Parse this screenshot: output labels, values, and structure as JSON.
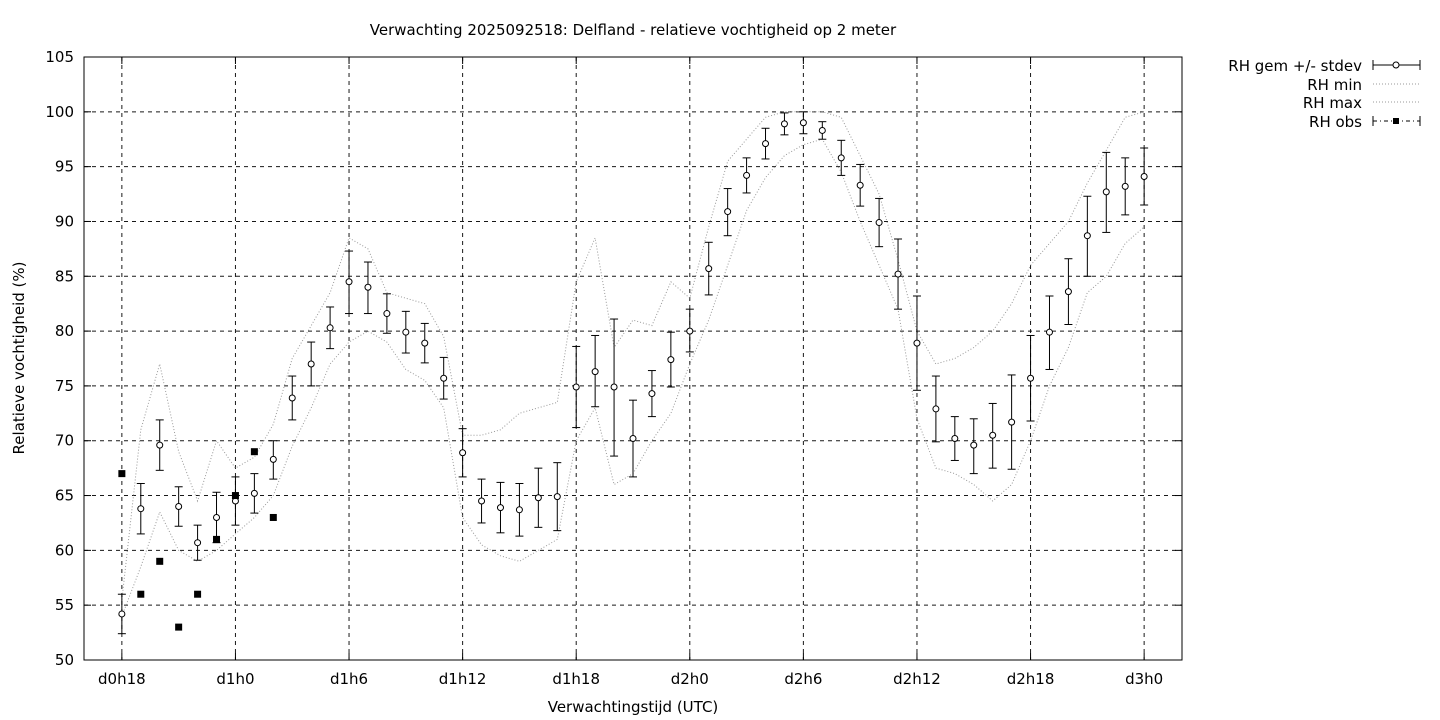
{
  "chart_data": {
    "type": "line",
    "title": "Verwachting 2025092518: Delfland - relatieve vochtigheid op 2 meter",
    "xlabel": "Verwachtingstijd (UTC)",
    "ylabel": "Relatieve vochtigheid (%)",
    "ylim": [
      50,
      105
    ],
    "yticks": [
      50,
      55,
      60,
      65,
      70,
      75,
      80,
      85,
      90,
      95,
      100,
      105
    ],
    "xlim": [
      -2,
      56
    ],
    "xticks": [
      {
        "x": 0,
        "label": "d0h18"
      },
      {
        "x": 6,
        "label": "d1h0"
      },
      {
        "x": 12,
        "label": "d1h6"
      },
      {
        "x": 18,
        "label": "d1h12"
      },
      {
        "x": 24,
        "label": "d1h18"
      },
      {
        "x": 30,
        "label": "d2h0"
      },
      {
        "x": 36,
        "label": "d2h6"
      },
      {
        "x": 42,
        "label": "d2h12"
      },
      {
        "x": 48,
        "label": "d2h18"
      },
      {
        "x": 54,
        "label": "d3h0"
      }
    ],
    "grid": true,
    "legend_position": "outside-top-right",
    "legend": {
      "mean": "RH gem +/- stdev",
      "min": "RH min",
      "max": "RH max",
      "obs": "RH obs"
    },
    "series": [
      {
        "key": "mean",
        "name": "RH gem +/- stdev",
        "style": "errorbars",
        "x": [
          0,
          1,
          2,
          3,
          4,
          5,
          6,
          7,
          8,
          9,
          10,
          11,
          12,
          13,
          14,
          15,
          16,
          17,
          18,
          19,
          20,
          21,
          22,
          23,
          24,
          25,
          26,
          27,
          28,
          29,
          30,
          31,
          32,
          33,
          34,
          35,
          36,
          37,
          38,
          39,
          40,
          41,
          42,
          43,
          44,
          45,
          46,
          47,
          48,
          49,
          50,
          51,
          52,
          53,
          54
        ],
        "y": [
          54.2,
          63.8,
          69.6,
          64.0,
          60.7,
          63.0,
          64.5,
          65.2,
          68.3,
          73.9,
          77.0,
          80.3,
          84.5,
          84.0,
          81.6,
          79.9,
          78.9,
          75.7,
          68.9,
          64.5,
          63.9,
          63.7,
          64.8,
          64.9,
          74.9,
          76.3,
          74.9,
          70.2,
          74.3,
          77.4,
          80.0,
          85.7,
          90.9,
          94.2,
          97.1,
          98.9,
          99.0,
          98.3,
          95.8,
          93.3,
          89.9,
          85.2,
          78.9,
          72.9,
          70.2,
          69.6,
          70.5,
          71.7,
          75.7,
          79.9,
          83.6,
          88.7,
          92.7,
          93.2,
          94.1
        ],
        "err_low": [
          52.4,
          61.5,
          67.3,
          62.2,
          59.1,
          60.7,
          62.3,
          63.4,
          66.5,
          71.9,
          75.0,
          78.4,
          81.6,
          81.6,
          79.8,
          78.0,
          77.1,
          73.8,
          66.7,
          62.5,
          61.6,
          61.3,
          62.1,
          61.8,
          71.2,
          73.1,
          68.6,
          66.7,
          72.2,
          74.9,
          78.1,
          83.3,
          88.7,
          92.6,
          95.7,
          97.9,
          98.0,
          97.5,
          94.2,
          91.4,
          87.7,
          82.0,
          74.6,
          69.9,
          68.2,
          67.0,
          67.5,
          67.4,
          71.8,
          76.5,
          80.6,
          85.0,
          89.0,
          90.6,
          91.5
        ],
        "err_high": [
          56.0,
          66.1,
          71.9,
          65.8,
          62.3,
          65.3,
          66.7,
          67.0,
          70.0,
          75.9,
          79.0,
          82.2,
          87.3,
          86.3,
          83.4,
          81.8,
          80.7,
          77.6,
          71.1,
          66.5,
          66.2,
          66.1,
          67.5,
          68.0,
          78.6,
          79.6,
          81.1,
          73.7,
          76.4,
          79.9,
          82.0,
          88.1,
          93.0,
          95.8,
          98.5,
          99.9,
          100.0,
          99.1,
          97.4,
          95.2,
          92.1,
          88.4,
          83.2,
          75.9,
          72.2,
          72.0,
          73.4,
          76.0,
          79.6,
          83.2,
          86.6,
          92.3,
          96.3,
          95.8,
          96.7
        ]
      },
      {
        "key": "min",
        "name": "RH min",
        "style": "dotted",
        "x": [
          0,
          1,
          2,
          3,
          4,
          5,
          6,
          7,
          8,
          9,
          10,
          11,
          12,
          13,
          14,
          15,
          16,
          17,
          18,
          19,
          20,
          21,
          22,
          23,
          24,
          25,
          26,
          27,
          28,
          29,
          30,
          31,
          32,
          33,
          34,
          35,
          36,
          37,
          38,
          39,
          40,
          41,
          42,
          43,
          44,
          45,
          46,
          47,
          48,
          49,
          50,
          51,
          52,
          53,
          54
        ],
        "y": [
          54.0,
          58.5,
          63.5,
          60.0,
          59.0,
          60.0,
          61.5,
          63.0,
          65.0,
          69.5,
          73.0,
          77.0,
          79.0,
          80.0,
          79.0,
          76.5,
          75.5,
          73.0,
          63.0,
          60.5,
          59.5,
          59.0,
          60.0,
          61.0,
          70.0,
          73.0,
          66.0,
          67.0,
          70.0,
          72.5,
          77.0,
          81.0,
          86.0,
          91.0,
          94.0,
          96.0,
          97.0,
          97.5,
          94.5,
          90.0,
          86.0,
          82.0,
          72.0,
          67.5,
          67.0,
          66.0,
          64.5,
          66.0,
          70.0,
          75.0,
          78.5,
          83.5,
          85.0,
          88.0,
          89.5
        ]
      },
      {
        "key": "max",
        "name": "RH max",
        "style": "dotted",
        "x": [
          0,
          1,
          2,
          3,
          4,
          5,
          6,
          7,
          8,
          9,
          10,
          11,
          12,
          13,
          14,
          15,
          16,
          17,
          18,
          19,
          20,
          21,
          22,
          23,
          24,
          25,
          26,
          27,
          28,
          29,
          30,
          31,
          32,
          33,
          34,
          35,
          36,
          37,
          38,
          39,
          40,
          41,
          42,
          43,
          44,
          45,
          46,
          47,
          48,
          49,
          50,
          51,
          52,
          53,
          54
        ],
        "y": [
          55.5,
          71.0,
          77.0,
          69.0,
          64.5,
          70.0,
          67.5,
          68.5,
          71.5,
          77.5,
          80.5,
          83.5,
          88.5,
          87.5,
          83.5,
          83.0,
          82.5,
          79.5,
          70.5,
          70.5,
          71.0,
          72.5,
          73.0,
          73.5,
          84.5,
          88.5,
          78.5,
          81.0,
          80.5,
          84.5,
          83.0,
          89.5,
          95.5,
          97.5,
          99.5,
          100.0,
          100.0,
          100.0,
          99.5,
          96.0,
          92.5,
          86.5,
          80.0,
          77.0,
          77.5,
          78.5,
          80.0,
          82.5,
          86.0,
          88.0,
          90.0,
          93.5,
          96.5,
          99.5,
          100.0
        ]
      },
      {
        "key": "obs",
        "name": "RH obs",
        "style": "points",
        "x": [
          0,
          1,
          2,
          3,
          4,
          5,
          6,
          7,
          8
        ],
        "y": [
          67,
          56,
          59,
          53,
          56,
          61,
          65,
          69,
          63
        ]
      }
    ]
  }
}
